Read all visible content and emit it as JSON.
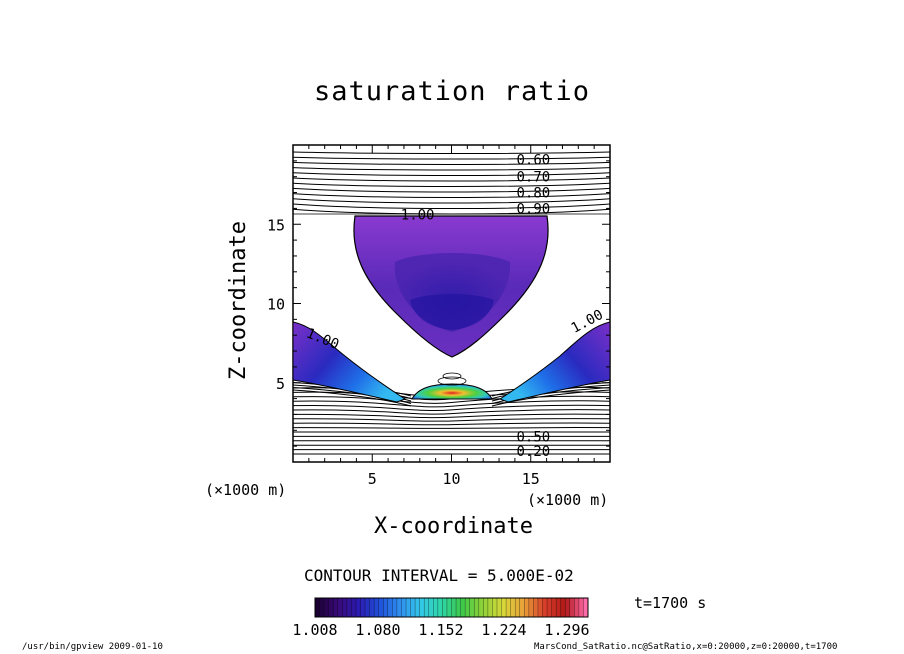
{
  "chart_data": {
    "type": "contour",
    "title": "saturation ratio",
    "xlabel": "X-coordinate",
    "ylabel": "Z-coordinate",
    "x_unit": "(×1000 m)",
    "y_unit": "(×1000 m)",
    "xlim": [
      0,
      20
    ],
    "ylim": [
      0,
      20
    ],
    "x_ticks": [
      5,
      10,
      15
    ],
    "y_ticks": [
      5,
      10,
      15
    ],
    "x_tick_labels": [
      "5",
      "10",
      "15"
    ],
    "y_tick_labels": [
      "5",
      "10",
      "15"
    ],
    "contour_interval_text": "CONTOUR INTERVAL = 5.000E-02",
    "contour_labels": [
      {
        "text": "0.60",
        "x": 14.1,
        "z": 19.1
      },
      {
        "text": "0.70",
        "x": 14.1,
        "z": 18.0
      },
      {
        "text": "0.80",
        "x": 14.1,
        "z": 17.0
      },
      {
        "text": "0.90",
        "x": 14.1,
        "z": 16.0
      },
      {
        "text": "1.00",
        "x": 6.8,
        "z": 15.6
      },
      {
        "text": "1.00",
        "x": 0.9,
        "z": 8.2
      },
      {
        "text": "1.00",
        "x": 17.6,
        "z": 8.4
      },
      {
        "text": "0.50",
        "x": 14.1,
        "z": 1.6
      },
      {
        "text": "0.20",
        "x": 14.1,
        "z": 0.7
      }
    ],
    "colorbar": {
      "ticks": [
        "1.008",
        "1.080",
        "1.152",
        "1.224",
        "1.296"
      ],
      "min": 1.008,
      "max": 1.32,
      "colors": [
        "#1a0033",
        "#3a0a7a",
        "#2a1ab0",
        "#1f4fd8",
        "#2f8ff0",
        "#33c7e8",
        "#2fd6a8",
        "#3cc84a",
        "#8fd238",
        "#d8d83a",
        "#e8a03a",
        "#d8402a",
        "#b01818",
        "#ff6aa8"
      ]
    }
  },
  "time_label": "t=1700 s",
  "footer": {
    "program": "/usr/bin/gpview  2009-01-10",
    "source": "MarsCond_SatRatio.nc@SatRatio,x=0:20000,z=0:20000,t=1700"
  }
}
